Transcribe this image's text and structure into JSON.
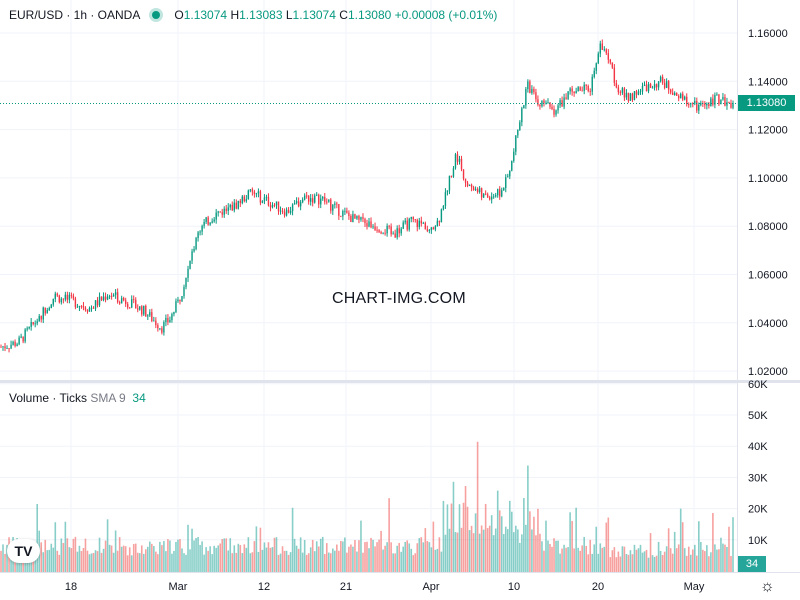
{
  "header": {
    "symbol": "EUR/USD · 1h · OANDA",
    "open_label": "O",
    "open": "1.13074",
    "high_label": "H",
    "high": "1.13083",
    "low_label": "L",
    "low": "1.13074",
    "close_label": "C",
    "close": "1.13080",
    "change": "+0.00008 (+0.01%)"
  },
  "volume_legend": {
    "title": "Volume · Ticks",
    "sma_label": "SMA 9",
    "value": "34"
  },
  "watermark": "CHART-IMG.COM",
  "last_price_tag": "1.13080",
  "last_volume_tag": "34",
  "logo_text": "TV",
  "colors": {
    "up": "#089981",
    "down": "#f23645",
    "vol_up": "#26a69a",
    "vol_down": "#ef5350",
    "grid": "#f0f3fa"
  },
  "chart_data": [
    {
      "type": "candlestick",
      "y_ticks": [
        "1.16000",
        "1.14000",
        "1.12000",
        "1.10000",
        "1.08000",
        "1.06000",
        "1.04000",
        "1.02000"
      ],
      "x_ticks": [
        "18",
        "Mar",
        "12",
        "21",
        "Apr",
        "10",
        "20",
        "May"
      ],
      "ylim": [
        1.018,
        1.164
      ],
      "last_price": 1.1308,
      "approx_close_path": [
        [
          0,
          1.03
        ],
        [
          2,
          1.032
        ],
        [
          4,
          1.041
        ],
        [
          6,
          1.051
        ],
        [
          8,
          1.049
        ],
        [
          10,
          1.046
        ],
        [
          12,
          1.052
        ],
        [
          14,
          1.049
        ],
        [
          16,
          1.045
        ],
        [
          18,
          1.038
        ],
        [
          19,
          1.042
        ],
        [
          20,
          1.05
        ],
        [
          21,
          1.062
        ],
        [
          22,
          1.078
        ],
        [
          24,
          1.085
        ],
        [
          26,
          1.088
        ],
        [
          28,
          1.094
        ],
        [
          30,
          1.09
        ],
        [
          32,
          1.086
        ],
        [
          34,
          1.092
        ],
        [
          36,
          1.091
        ],
        [
          38,
          1.086
        ],
        [
          40,
          1.082
        ],
        [
          42,
          1.08
        ],
        [
          44,
          1.077
        ],
        [
          46,
          1.082
        ],
        [
          48,
          1.08
        ],
        [
          49,
          1.082
        ],
        [
          50,
          1.096
        ],
        [
          51,
          1.11
        ],
        [
          52,
          1.1
        ],
        [
          54,
          1.092
        ],
        [
          56,
          1.094
        ],
        [
          57,
          1.102
        ],
        [
          58,
          1.122
        ],
        [
          59,
          1.138
        ],
        [
          60,
          1.132
        ],
        [
          62,
          1.128
        ],
        [
          64,
          1.136
        ],
        [
          66,
          1.137
        ],
        [
          67,
          1.155
        ],
        [
          68,
          1.15
        ],
        [
          69,
          1.138
        ],
        [
          70,
          1.133
        ],
        [
          72,
          1.137
        ],
        [
          74,
          1.14
        ],
        [
          76,
          1.134
        ],
        [
          78,
          1.129
        ],
        [
          80,
          1.133
        ],
        [
          82,
          1.131
        ]
      ]
    },
    {
      "type": "bar",
      "title": "Volume · Ticks",
      "y_ticks": [
        "60K",
        "50K",
        "40K",
        "30K",
        "20K",
        "10K"
      ],
      "ylim": [
        0,
        60000
      ],
      "last_value": 34
    }
  ]
}
